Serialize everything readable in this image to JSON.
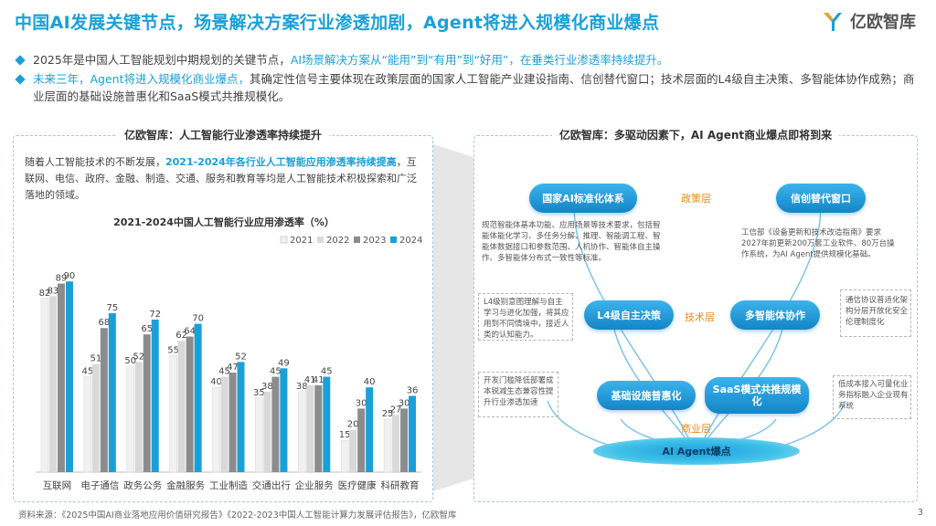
{
  "header": {
    "title": "中国AI发展关键节点，场景解决方案行业渗透加剧，Agent将进入规模化商业爆点",
    "logo_text": "亿欧智库"
  },
  "bullets": [
    {
      "pre": "2025年是中国人工智能规划中期规划的关键节点，",
      "hl": "AI场景解决方案从“能用”到“有用”到“好用”，在垂类行业渗透率持续提升。",
      "post": ""
    },
    {
      "pre": "",
      "hl": "未来三年，Agent将进入规模化商业爆点，",
      "post": "其确定性信号主要体现在政策层面的国家人工智能产业建设指南、信创替代窗口；技术层面的L4级自主决策、多智能体协作成熟；商业层面的基础设施普惠化和SaaS模式共推规模化。"
    }
  ],
  "left_panel": {
    "title": "亿欧智库：人工智能行业渗透率持续提升",
    "desc_pre": "随着人工智能技术的不断发展，",
    "desc_hl": "2021-2024年各行业人工智能应用渗透率持续提高",
    "desc_post": "，互联网、电信、政府、金融、制造、交通、服务和教育等均是人工智能技术积极探索和广泛落地的领域。"
  },
  "chart_data": {
    "type": "bar",
    "title": "2021-2024中国人工智能行业应用渗透率（%）",
    "categories": [
      "互联网",
      "电子通信",
      "政务公务",
      "金融服务",
      "工业制造",
      "交通出行",
      "企业服务",
      "医疗健康",
      "科研教育"
    ],
    "series": [
      {
        "name": "2021",
        "color": "#f1f1f1",
        "values": [
          82,
          45,
          50,
          55,
          40,
          35,
          38,
          15,
          25
        ]
      },
      {
        "name": "2022",
        "color": "#d9d9d9",
        "values": [
          83,
          51,
          52,
          62,
          45,
          38,
          41,
          20,
          27
        ]
      },
      {
        "name": "2023",
        "color": "#8c8c8c",
        "values": [
          89,
          68,
          65,
          64,
          47,
          45,
          41,
          30,
          30
        ]
      },
      {
        "name": "2024",
        "color": "#1aa0d8",
        "values": [
          90,
          75,
          72,
          70,
          52,
          49,
          45,
          40,
          36
        ]
      }
    ],
    "ylim": [
      0,
      100
    ],
    "legend": "top-right",
    "grid": false
  },
  "right_panel": {
    "title": "亿欧智库：多驱动因素下，AI Agent商业爆点即将到来",
    "nodes": {
      "policy_guide": "国家AI标准化体系",
      "xinchuang": "信创替代窗口",
      "l4": "L4级自主决策",
      "multi_agent": "多智能体协作",
      "infra": "基础设施普惠化",
      "saas": "SaaS模式共推规模化",
      "core": "AI Agent爆点"
    },
    "layers": {
      "policy": "政策层",
      "tech": "技术层",
      "biz": "商业层"
    },
    "notes": {
      "policy_left": "规范智能体基本功能、应用场景等技术要求，包括智能体能化学习、多任务分解、推理、智能调工程、智能体数据接口和参数范围、人机协作、智能体自主操作、多智能体分布式一致性等标准。",
      "policy_right": "工信部《设备更新和技术改造指南》要求2027年前更新200万套工业软件、80万台操作系统，为AI Agent提供规模化基础。",
      "tech_left": "L4级别意图理解与自主学习与进化加强，将其应用到不同情境中，接近人类的认知能力。",
      "tech_right": "通信协议普适化架构分层开放化安全伦理制度化",
      "biz_left": "开发门槛降低部署成本锐减生态兼容性提升行业渗透加速",
      "biz_right": "低成本接入可量化业务指标融入企业现有系统"
    }
  },
  "footer": {
    "source": "资料来源：《2025中国AI商业落地应用价值研究报告》《2022-2023中国人工智能计算力发展评估报告》，亿欧智库",
    "page": "3"
  }
}
